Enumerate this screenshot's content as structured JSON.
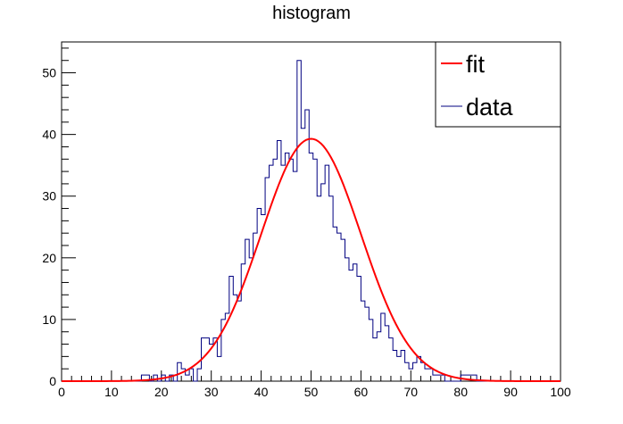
{
  "chart_data": {
    "type": "histogram",
    "title": "histogram",
    "xlim": [
      0,
      100
    ],
    "ylim": [
      0,
      55
    ],
    "x_ticks": [
      0,
      10,
      20,
      30,
      40,
      50,
      60,
      70,
      80,
      90,
      100
    ],
    "y_ticks": [
      0,
      10,
      20,
      30,
      40,
      50
    ],
    "bin_width": 0.8,
    "legend": {
      "position": "top-right",
      "entries": [
        "fit",
        "data"
      ]
    },
    "colors": {
      "fit": "#ff0000",
      "data": "#000080"
    },
    "series": [
      {
        "name": "data",
        "type": "step",
        "bin_starts": [
          16.0,
          16.8,
          17.6,
          18.4,
          19.2,
          20.0,
          20.8,
          21.6,
          22.4,
          23.2,
          24.0,
          24.8,
          25.6,
          26.4,
          27.2,
          28.0,
          28.8,
          29.6,
          30.4,
          31.2,
          32.0,
          32.8,
          33.6,
          34.4,
          35.2,
          36.0,
          36.8,
          37.6,
          38.4,
          39.2,
          40.0,
          40.8,
          41.6,
          42.4,
          43.2,
          44.0,
          44.8,
          45.6,
          46.4,
          47.2,
          48.0,
          48.8,
          49.6,
          50.4,
          51.2,
          52.0,
          52.8,
          53.6,
          54.4,
          55.2,
          56.0,
          56.8,
          57.6,
          58.4,
          59.2,
          60.0,
          60.8,
          61.6,
          62.4,
          63.2,
          64.0,
          64.8,
          65.6,
          66.4,
          67.2,
          68.0,
          68.8,
          69.6,
          70.4,
          71.2,
          72.0,
          72.8,
          73.6,
          74.4,
          75.2,
          76.0,
          76.8,
          77.6,
          78.4,
          79.2,
          80.0,
          80.8,
          81.6,
          82.4,
          83.2
        ],
        "counts": [
          1,
          1,
          0,
          1,
          0,
          1,
          0,
          1,
          0,
          3,
          2,
          1,
          2,
          0,
          2,
          7,
          7,
          6,
          7,
          4,
          10,
          11,
          17,
          14,
          13,
          19,
          23,
          20,
          24,
          28,
          27,
          33,
          35,
          36,
          39,
          35,
          37,
          36,
          34,
          52,
          41,
          44,
          37,
          36,
          30,
          32,
          35,
          30,
          25,
          24,
          23,
          20,
          18,
          19,
          17,
          13,
          12,
          10,
          7,
          8,
          11,
          9,
          7,
          5,
          4,
          5,
          3,
          2,
          3,
          4,
          3,
          2,
          2,
          1,
          1,
          1,
          0,
          0,
          0,
          0,
          1,
          1,
          1,
          1,
          0
        ]
      },
      {
        "name": "fit",
        "type": "gaussian",
        "amplitude": 39.3,
        "mean": 50.0,
        "sigma": 10.0
      }
    ]
  }
}
